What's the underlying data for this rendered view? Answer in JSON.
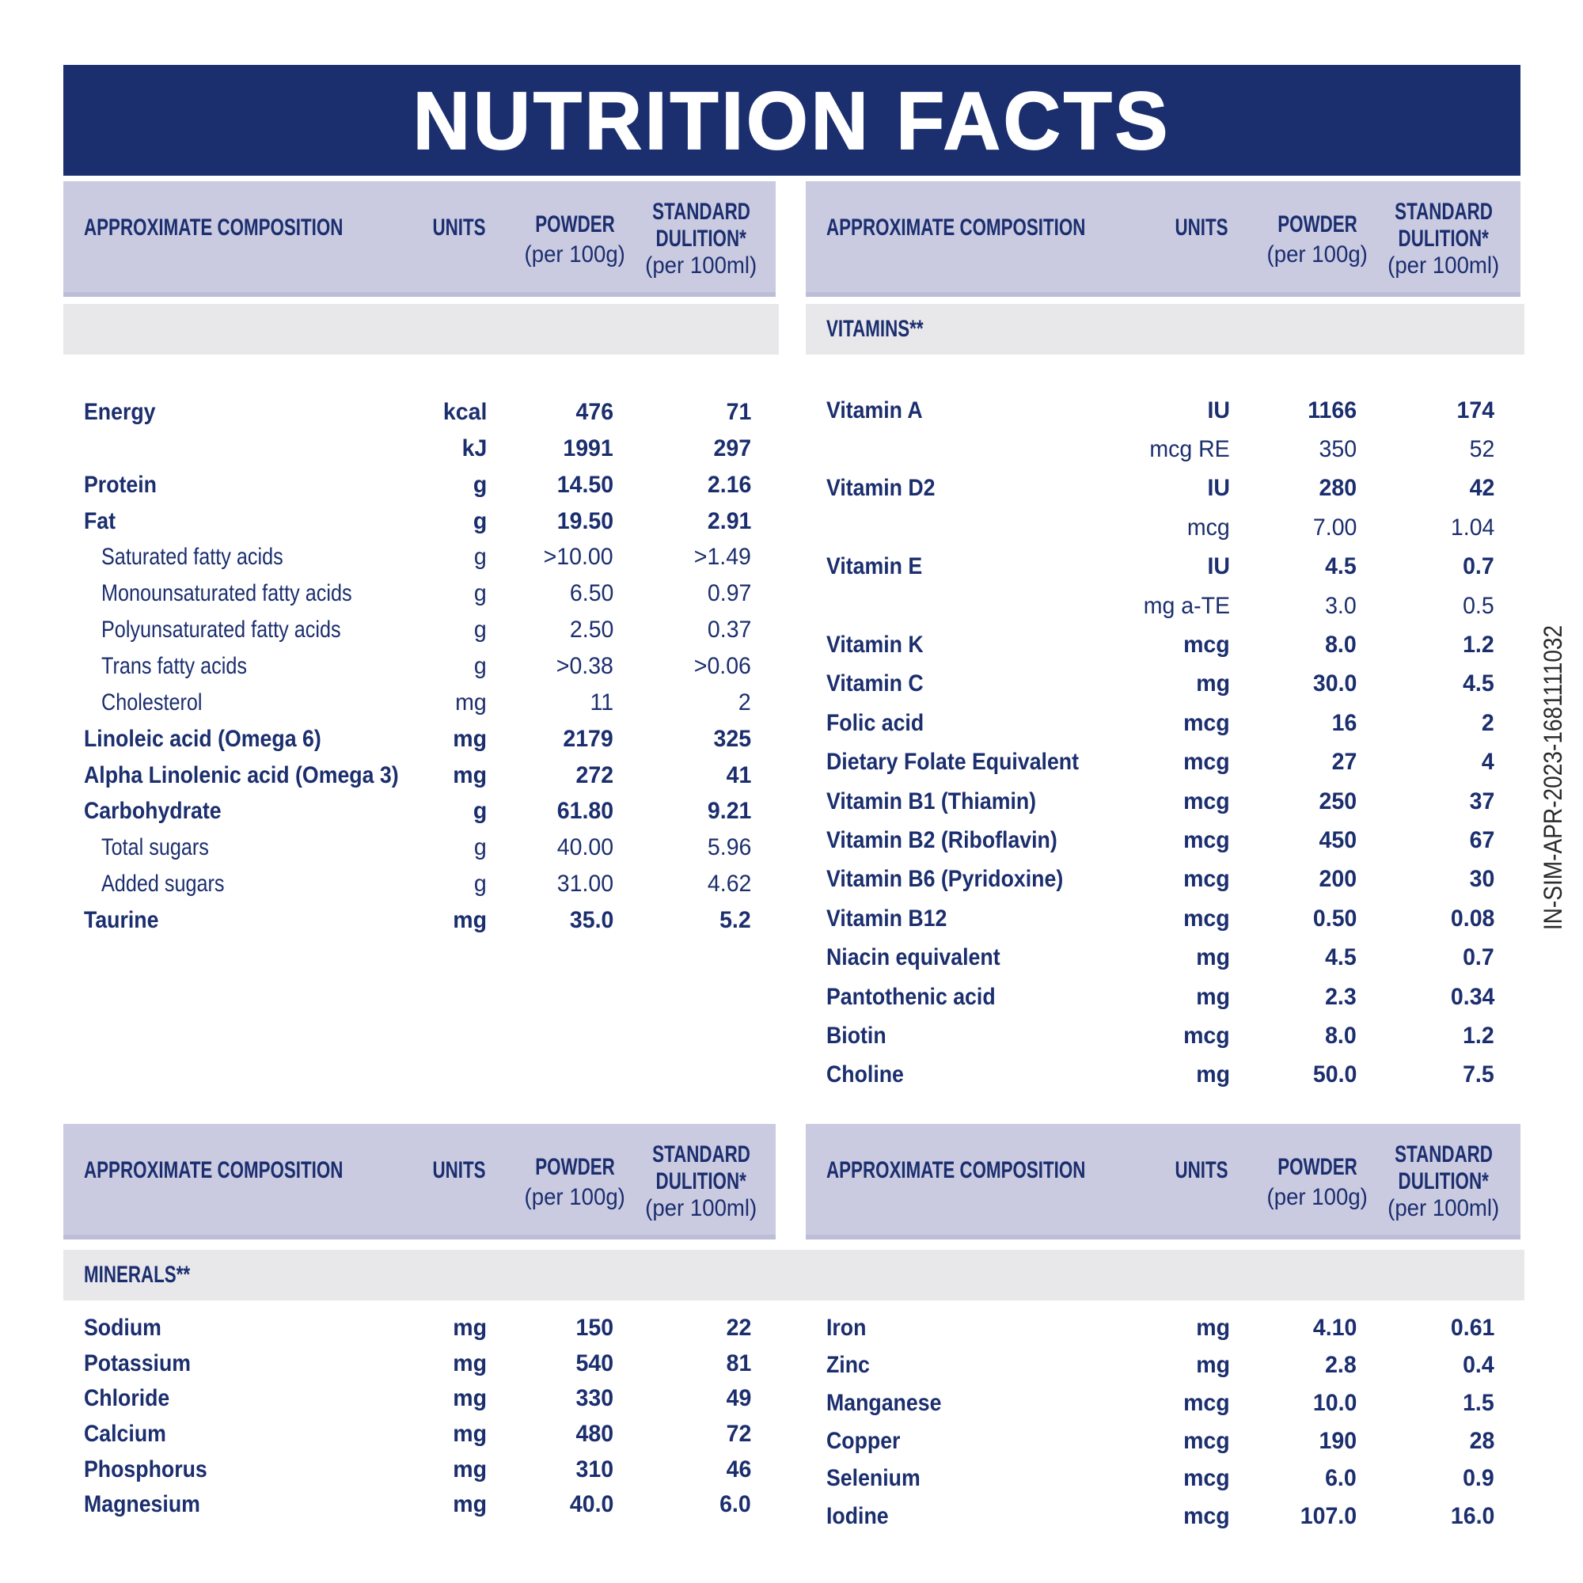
{
  "title": "NUTRITION FACTS",
  "side_code": "IN-SIM-APR-2023-1681111032",
  "colors": {
    "navy": "#1b2e6e",
    "lavender": "#cacae1",
    "gray_band": "#e8e8eb",
    "background": "#ffffff",
    "side_code_text": "#2b2b2b"
  },
  "header": {
    "composition": "APPROXIMATE COMPOSITION",
    "units": "UNITS",
    "powder": "POWDER",
    "powder_sub": "(per 100g)",
    "standard_line1": "STANDARD",
    "standard_line2": "DULITION*",
    "standard_sub": "(per 100ml)"
  },
  "sections": {
    "vitamins": "VITAMINS**",
    "minerals": "MINERALS**"
  },
  "tables": {
    "composition": {
      "rows": [
        {
          "label": "Energy",
          "unit": "kcal",
          "powder": "476",
          "dilution": "71",
          "style": "bold",
          "indent": false
        },
        {
          "label": "",
          "unit": "kJ",
          "powder": "1991",
          "dilution": "297",
          "style": "bold",
          "indent": false
        },
        {
          "label": "Protein",
          "unit": "g",
          "powder": "14.50",
          "dilution": "2.16",
          "style": "bold",
          "indent": false
        },
        {
          "label": "Fat",
          "unit": "g",
          "powder": "19.50",
          "dilution": "2.91",
          "style": "bold",
          "indent": false
        },
        {
          "label": "Saturated fatty acids",
          "unit": "g",
          "powder": ">10.00",
          "dilution": ">1.49",
          "style": "regular",
          "indent": true
        },
        {
          "label": "Monounsaturated fatty acids",
          "unit": "g",
          "powder": "6.50",
          "dilution": "0.97",
          "style": "regular",
          "indent": true
        },
        {
          "label": "Polyunsaturated fatty acids",
          "unit": "g",
          "powder": "2.50",
          "dilution": "0.37",
          "style": "regular",
          "indent": true
        },
        {
          "label": "Trans fatty acids",
          "unit": "g",
          "powder": ">0.38",
          "dilution": ">0.06",
          "style": "regular",
          "indent": true
        },
        {
          "label": "Cholesterol",
          "unit": "mg",
          "powder": "11",
          "dilution": "2",
          "style": "regular",
          "indent": true
        },
        {
          "label": "Linoleic acid (Omega 6)",
          "unit": "mg",
          "powder": "2179",
          "dilution": "325",
          "style": "bold",
          "indent": false
        },
        {
          "label": "Alpha Linolenic acid (Omega 3)",
          "unit": "mg",
          "powder": "272",
          "dilution": "41",
          "style": "bold",
          "indent": false
        },
        {
          "label": "Carbohydrate",
          "unit": "g",
          "powder": "61.80",
          "dilution": "9.21",
          "style": "bold",
          "indent": false
        },
        {
          "label": "Total sugars",
          "unit": "g",
          "powder": "40.00",
          "dilution": "5.96",
          "style": "regular",
          "indent": true
        },
        {
          "label": "Added sugars",
          "unit": "g",
          "powder": "31.00",
          "dilution": "4.62",
          "style": "regular",
          "indent": true
        },
        {
          "label": "Taurine",
          "unit": "mg",
          "powder": "35.0",
          "dilution": "5.2",
          "style": "bold",
          "indent": false
        }
      ]
    },
    "vitamins": {
      "rows": [
        {
          "label": "Vitamin A",
          "unit": "IU",
          "powder": "1166",
          "dilution": "174",
          "style": "bold",
          "indent": false
        },
        {
          "label": "",
          "unit": "mcg RE",
          "powder": "350",
          "dilution": "52",
          "style": "regular",
          "indent": false
        },
        {
          "label": "Vitamin D2",
          "unit": "IU",
          "powder": "280",
          "dilution": "42",
          "style": "bold",
          "indent": false
        },
        {
          "label": "",
          "unit": "mcg",
          "powder": "7.00",
          "dilution": "1.04",
          "style": "regular",
          "indent": false
        },
        {
          "label": "Vitamin E",
          "unit": "IU",
          "powder": "4.5",
          "dilution": "0.7",
          "style": "bold",
          "indent": false
        },
        {
          "label": "",
          "unit": "mg a-TE",
          "powder": "3.0",
          "dilution": "0.5",
          "style": "regular",
          "indent": false
        },
        {
          "label": "Vitamin K",
          "unit": "mcg",
          "powder": "8.0",
          "dilution": "1.2",
          "style": "bold",
          "indent": false
        },
        {
          "label": "Vitamin C",
          "unit": "mg",
          "powder": "30.0",
          "dilution": "4.5",
          "style": "bold",
          "indent": false
        },
        {
          "label": "Folic acid",
          "unit": "mcg",
          "powder": "16",
          "dilution": "2",
          "style": "bold",
          "indent": false
        },
        {
          "label": "Dietary Folate Equivalent",
          "unit": "mcg",
          "powder": "27",
          "dilution": "4",
          "style": "bold",
          "indent": false
        },
        {
          "label": "Vitamin B1 (Thiamin)",
          "unit": "mcg",
          "powder": "250",
          "dilution": "37",
          "style": "bold",
          "indent": false
        },
        {
          "label": "Vitamin B2 (Riboflavin)",
          "unit": "mcg",
          "powder": "450",
          "dilution": "67",
          "style": "bold",
          "indent": false
        },
        {
          "label": "Vitamin B6 (Pyridoxine)",
          "unit": "mcg",
          "powder": "200",
          "dilution": "30",
          "style": "bold",
          "indent": false
        },
        {
          "label": "Vitamin B12",
          "unit": "mcg",
          "powder": "0.50",
          "dilution": "0.08",
          "style": "bold",
          "indent": false
        },
        {
          "label": "Niacin equivalent",
          "unit": "mg",
          "powder": "4.5",
          "dilution": "0.7",
          "style": "bold",
          "indent": false
        },
        {
          "label": "Pantothenic acid",
          "unit": "mg",
          "powder": "2.3",
          "dilution": "0.34",
          "style": "bold",
          "indent": false
        },
        {
          "label": "Biotin",
          "unit": "mcg",
          "powder": "8.0",
          "dilution": "1.2",
          "style": "bold",
          "indent": false
        },
        {
          "label": "Choline",
          "unit": "mg",
          "powder": "50.0",
          "dilution": "7.5",
          "style": "bold",
          "indent": false
        }
      ]
    },
    "minerals_left": {
      "rows": [
        {
          "label": "Sodium",
          "unit": "mg",
          "powder": "150",
          "dilution": "22",
          "style": "bold",
          "indent": false
        },
        {
          "label": "Potassium",
          "unit": "mg",
          "powder": "540",
          "dilution": "81",
          "style": "bold",
          "indent": false
        },
        {
          "label": "Chloride",
          "unit": "mg",
          "powder": "330",
          "dilution": "49",
          "style": "bold",
          "indent": false
        },
        {
          "label": "Calcium",
          "unit": "mg",
          "powder": "480",
          "dilution": "72",
          "style": "bold",
          "indent": false
        },
        {
          "label": "Phosphorus",
          "unit": "mg",
          "powder": "310",
          "dilution": "46",
          "style": "bold",
          "indent": false
        },
        {
          "label": "Magnesium",
          "unit": "mg",
          "powder": "40.0",
          "dilution": "6.0",
          "style": "bold",
          "indent": false
        }
      ]
    },
    "minerals_right": {
      "rows": [
        {
          "label": "Iron",
          "unit": "mg",
          "powder": "4.10",
          "dilution": "0.61",
          "style": "bold",
          "indent": false
        },
        {
          "label": "Zinc",
          "unit": "mg",
          "powder": "2.8",
          "dilution": "0.4",
          "style": "bold",
          "indent": false
        },
        {
          "label": "Manganese",
          "unit": "mcg",
          "powder": "10.0",
          "dilution": "1.5",
          "style": "bold",
          "indent": false
        },
        {
          "label": "Copper",
          "unit": "mcg",
          "powder": "190",
          "dilution": "28",
          "style": "bold",
          "indent": false
        },
        {
          "label": "Selenium",
          "unit": "mcg",
          "powder": "6.0",
          "dilution": "0.9",
          "style": "bold",
          "indent": false
        },
        {
          "label": "Iodine",
          "unit": "mcg",
          "powder": "107.0",
          "dilution": "16.0",
          "style": "bold",
          "indent": false
        }
      ]
    }
  }
}
